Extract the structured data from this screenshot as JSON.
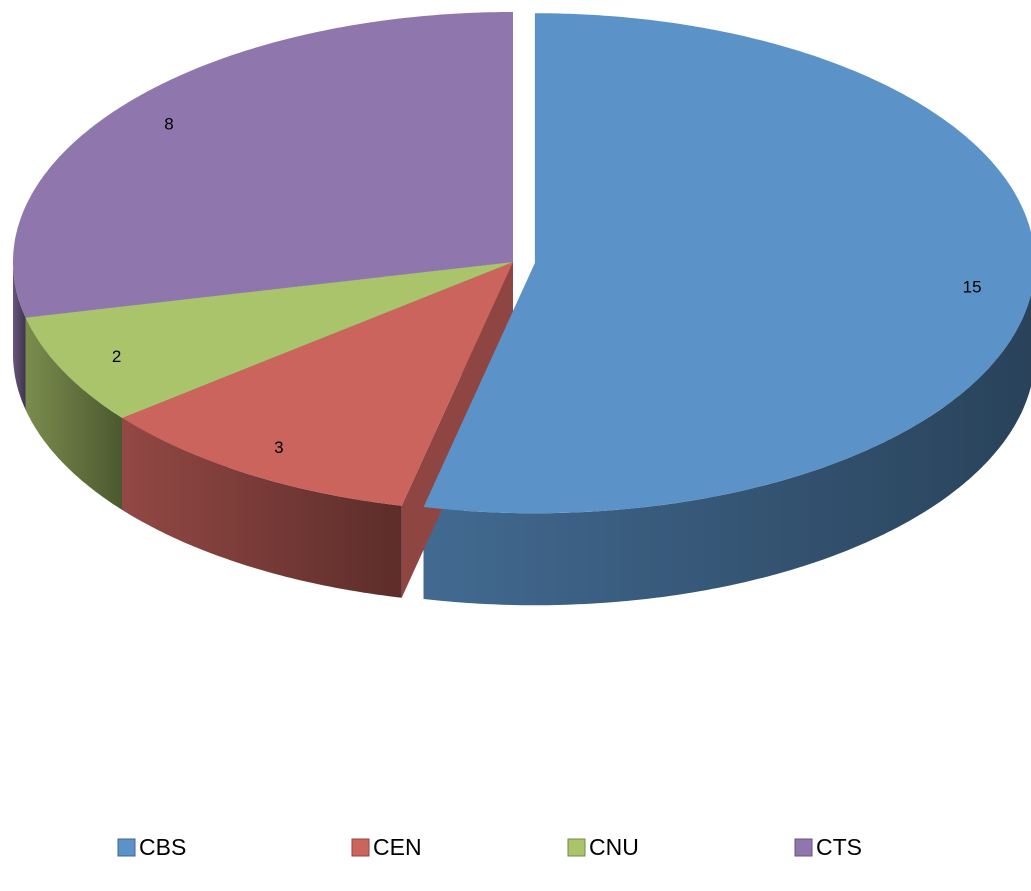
{
  "chart_data": {
    "type": "pie",
    "categories": [
      "CBS",
      "CEN",
      "CNU",
      "CTS"
    ],
    "values": [
      15,
      3,
      2,
      8
    ],
    "colors": [
      "#5b93c9",
      "#cc645e",
      "#a9c46b",
      "#8f77ae"
    ],
    "legend": "bottom"
  }
}
